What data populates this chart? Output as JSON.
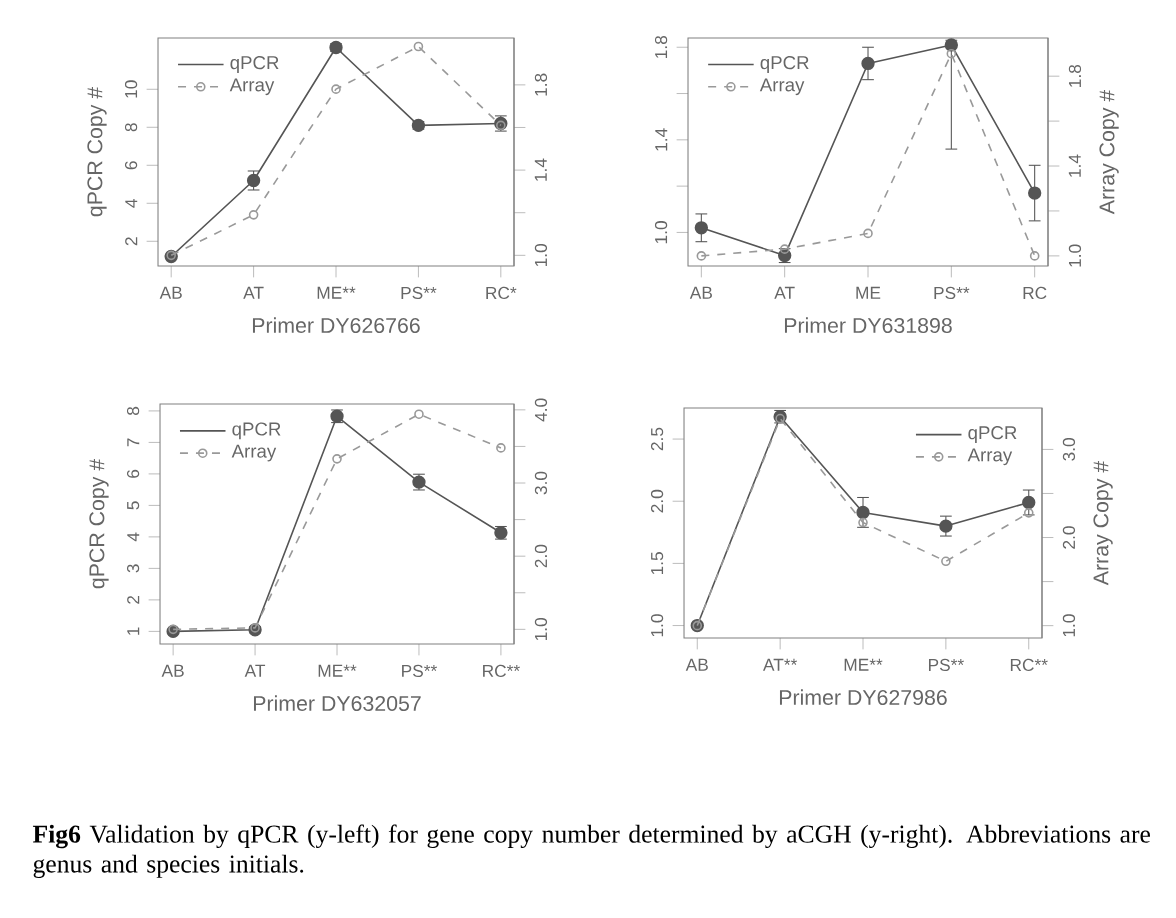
{
  "chart_data": [
    {
      "type": "line",
      "xlabel": "Primer DY626766",
      "ylabel": "qPCR Copy #",
      "categories": [
        "AB",
        "AT",
        "ME**",
        "PS**",
        "RC*"
      ],
      "marker": "circle",
      "legend": "top left",
      "ylim": [
        0.7,
        12.7
      ],
      "yticks": [
        2,
        4,
        6,
        8,
        10
      ],
      "y2lim": [
        0.95,
        2.02
      ],
      "y2ticks": [
        {
          "value": 1,
          "label": "1.0"
        },
        {
          "value": 1.2,
          "label": null
        },
        {
          "value": 1.4,
          "label": "1.4"
        },
        {
          "value": 1.6,
          "label": null
        },
        {
          "value": 1.8,
          "label": "1.8"
        }
      ],
      "series": [
        {
          "name": "qPCR",
          "color": "#555555",
          "line_style": "solid",
          "values": [
            1.2,
            5.2,
            12.2,
            8.1,
            8.2
          ],
          "errors": [
            null,
            0.5,
            0.2,
            0.2,
            0.4
          ]
        },
        {
          "name": "Array",
          "color": "#999999",
          "line_style": "dashed",
          "axis": "y2",
          "values": [
            1.0,
            1.19,
            1.78,
            1.98,
            1.61
          ]
        }
      ]
    },
    {
      "type": "line",
      "xlabel": "Primer DY631898",
      "y2label": "Array Copy #",
      "categories": [
        "AB",
        "AT",
        "ME",
        "PS**",
        "RC"
      ],
      "marker": "circle",
      "legend": "top left",
      "ylim": [
        0.855,
        1.84
      ],
      "yticks": [
        {
          "value": 1,
          "label": "1.0"
        },
        {
          "value": 1.2,
          "label": null
        },
        {
          "value": 1.4,
          "label": "1.4"
        },
        {
          "value": 1.6,
          "label": null
        },
        {
          "value": 1.8,
          "label": "1.8"
        }
      ],
      "y2lim": [
        0.955,
        1.97
      ],
      "y2ticks": [
        {
          "value": 1,
          "label": "1.0"
        },
        {
          "value": 1.2,
          "label": null
        },
        {
          "value": 1.4,
          "label": "1.4"
        },
        {
          "value": 1.6,
          "label": null
        },
        {
          "value": 1.8,
          "label": "1.8"
        }
      ],
      "series": [
        {
          "name": "qPCR",
          "color": "#555555",
          "line_style": "solid",
          "values": [
            1.02,
            0.9,
            1.73,
            1.81,
            1.17
          ],
          "errors": [
            0.06,
            0.03,
            0.07,
            [
              1.36,
              1.83
            ],
            0.12
          ]
        },
        {
          "name": "Array",
          "color": "#999999",
          "line_style": "dashed",
          "axis": "y2",
          "values": [
            1.0,
            1.03,
            1.1,
            1.9,
            1.0
          ]
        }
      ]
    },
    {
      "type": "line",
      "xlabel": "Primer DY632057",
      "ylabel": "qPCR Copy #",
      "categories": [
        "AB",
        "AT",
        "ME**",
        "PS**",
        "RC**"
      ],
      "marker": "circle",
      "legend": "top left",
      "ylim": [
        0.6,
        8.22
      ],
      "yticks": [
        1,
        2,
        3,
        4,
        5,
        6,
        7,
        8
      ],
      "y2lim": [
        0.8,
        4.08
      ],
      "y2ticks": [
        {
          "value": 1,
          "label": "1.0"
        },
        {
          "value": 1.5,
          "label": null
        },
        {
          "value": 2,
          "label": "2.0"
        },
        {
          "value": 2.5,
          "label": null
        },
        {
          "value": 3,
          "label": "3.0"
        },
        {
          "value": 3.5,
          "label": null
        },
        {
          "value": 4,
          "label": "4.0"
        }
      ],
      "series": [
        {
          "name": "qPCR",
          "color": "#555555",
          "line_style": "solid",
          "values": [
            1.0,
            1.05,
            7.83,
            5.74,
            4.13
          ],
          "errors": [
            null,
            0.1,
            0.2,
            0.25,
            0.2
          ]
        },
        {
          "name": "Array",
          "color": "#999999",
          "line_style": "dashed",
          "axis": "y2",
          "values": [
            1.0,
            1.02,
            3.33,
            3.94,
            3.48
          ]
        }
      ]
    },
    {
      "type": "line",
      "xlabel": "Primer DY627986",
      "y2label": "Array Copy #",
      "categories": [
        "AB",
        "AT**",
        "ME**",
        "PS**",
        "RC**"
      ],
      "marker": "circle",
      "legend": "top right",
      "ylim": [
        0.9,
        2.75
      ],
      "yticks": [
        {
          "value": 1,
          "label": "1.0"
        },
        {
          "value": 1.5,
          "label": "1.5"
        },
        {
          "value": 2,
          "label": "2.0"
        },
        {
          "value": 2.5,
          "label": "2.5"
        }
      ],
      "y2lim": [
        0.86,
        3.47
      ],
      "y2ticks": [
        {
          "value": 1,
          "label": "1.0"
        },
        {
          "value": 1.5,
          "label": null
        },
        {
          "value": 2,
          "label": "2.0"
        },
        {
          "value": 2.5,
          "label": null
        },
        {
          "value": 3,
          "label": "3.0"
        }
      ],
      "series": [
        {
          "name": "qPCR",
          "color": "#555555",
          "line_style": "solid",
          "values": [
            1.0,
            2.68,
            1.91,
            1.8,
            1.99
          ],
          "errors": [
            null,
            0.05,
            0.12,
            0.08,
            0.1
          ]
        },
        {
          "name": "Array",
          "color": "#999999",
          "line_style": "dashed",
          "axis": "y2",
          "values": [
            1.0,
            3.35,
            2.17,
            1.73,
            2.28
          ]
        }
      ],
      "annotations": [
        "**Fig6** Validation by qPCR (y-left) for gene copy number determined by aCGH (y-right). Abbreviations are genus and species initials."
      ]
    }
  ]
}
